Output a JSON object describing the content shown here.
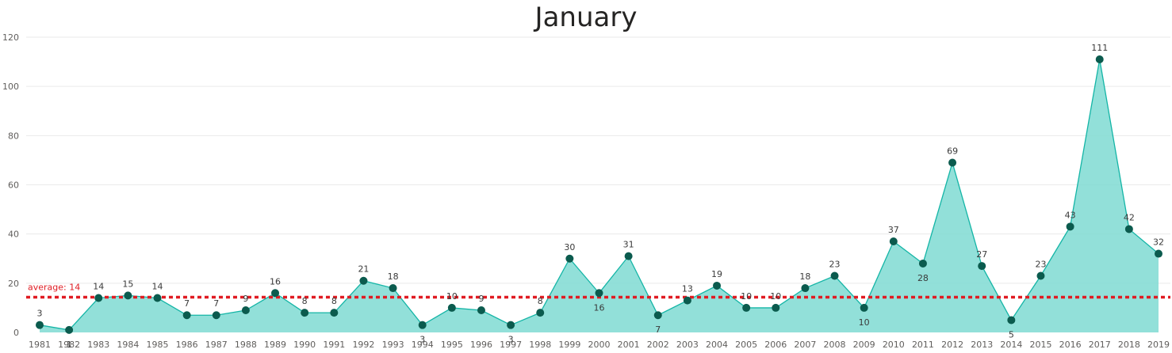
{
  "chart_data": {
    "type": "area",
    "title": "January",
    "xlabel": "",
    "ylabel": "",
    "x": [
      "1981",
      "1982",
      "1983",
      "1984",
      "1985",
      "1986",
      "1987",
      "1988",
      "1989",
      "1990",
      "1991",
      "1992",
      "1993",
      "1994",
      "1995",
      "1996",
      "1997",
      "1998",
      "1999",
      "2000",
      "2001",
      "2002",
      "2003",
      "2004",
      "2005",
      "2006",
      "2007",
      "2008",
      "2009",
      "2010",
      "2011",
      "2012",
      "2013",
      "2014",
      "2015",
      "2016",
      "2017",
      "2018",
      "2019"
    ],
    "values": [
      3,
      1,
      14,
      15,
      14,
      7,
      7,
      9,
      16,
      8,
      8,
      21,
      18,
      3,
      10,
      9,
      3,
      8,
      30,
      16,
      31,
      7,
      13,
      19,
      10,
      10,
      18,
      23,
      10,
      37,
      28,
      69,
      27,
      5,
      23,
      43,
      111,
      42,
      32
    ],
    "ylim": [
      0,
      120
    ],
    "yticks": [
      0,
      20,
      40,
      60,
      80,
      100,
      120
    ],
    "grid": true,
    "average": {
      "value": 14,
      "label": "average: 14"
    },
    "colors": {
      "fill": "#7FDBD2",
      "line": "#14B5A6",
      "marker": "#0B5B4E",
      "average": "#E01B22",
      "grid": "#EAEAEA"
    }
  }
}
